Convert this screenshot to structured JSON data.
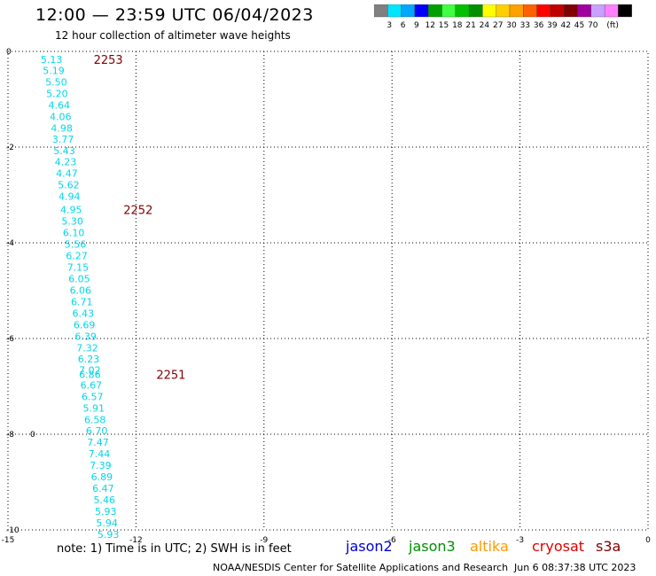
{
  "header": {
    "title": "12:00 — 23:59 UTC 06/04/2023",
    "subtitle": "12 hour collection of altimeter wave heights"
  },
  "legend": {
    "colors": [
      "#808080",
      "#00e5ff",
      "#00a6ff",
      "#0000ff",
      "#00a000",
      "#40ff40",
      "#00c000",
      "#009000",
      "#ffff00",
      "#ffd000",
      "#ffa000",
      "#ff6000",
      "#ff0000",
      "#c00000",
      "#800000",
      "#a000a0",
      "#c8a0ff",
      "#ff80ff",
      "#000000"
    ],
    "labels": [
      "3",
      "6",
      "9",
      "12",
      "15",
      "18",
      "21",
      "24",
      "27",
      "30",
      "33",
      "36",
      "39",
      "42",
      "45",
      "70",
      "(ft)"
    ]
  },
  "chart_data": {
    "type": "scatter",
    "xlim": [
      -15,
      0
    ],
    "ylim": [
      -10,
      0
    ],
    "x_ticks": [
      "-15",
      "-12",
      "-9",
      "-6",
      "-3",
      "0"
    ],
    "y_ticks": [
      "0",
      "-2",
      "-4",
      "-6",
      "-8",
      "-10"
    ],
    "grid": true,
    "value_color": "#00d8e8",
    "track_label_color": "#800000",
    "points": [
      {
        "x": -13.98,
        "y": -0.17,
        "v": "5.13"
      },
      {
        "x": -13.93,
        "y": -0.4,
        "v": "5.19"
      },
      {
        "x": -13.87,
        "y": -0.64,
        "v": "5.50"
      },
      {
        "x": -13.85,
        "y": -0.88,
        "v": "5.20"
      },
      {
        "x": -13.8,
        "y": -1.12,
        "v": "4.64"
      },
      {
        "x": -13.77,
        "y": -1.36,
        "v": "4.06"
      },
      {
        "x": -13.74,
        "y": -1.6,
        "v": "4.98"
      },
      {
        "x": -13.71,
        "y": -1.83,
        "v": "3.77"
      },
      {
        "x": -13.68,
        "y": -2.07,
        "v": "5.43"
      },
      {
        "x": -13.65,
        "y": -2.31,
        "v": "4.23"
      },
      {
        "x": -13.62,
        "y": -2.55,
        "v": "4.47"
      },
      {
        "x": -13.58,
        "y": -2.79,
        "v": "5.62"
      },
      {
        "x": -13.56,
        "y": -3.03,
        "v": "4.94"
      },
      {
        "x": -13.52,
        "y": -3.31,
        "v": "4.95"
      },
      {
        "x": -13.49,
        "y": -3.55,
        "v": "5.30"
      },
      {
        "x": -13.46,
        "y": -3.79,
        "v": "6.10"
      },
      {
        "x": -13.42,
        "y": -4.03,
        "v": "5.56"
      },
      {
        "x": -13.39,
        "y": -4.27,
        "v": "6.27"
      },
      {
        "x": -13.36,
        "y": -4.51,
        "v": "7.15"
      },
      {
        "x": -13.33,
        "y": -4.75,
        "v": "6.05"
      },
      {
        "x": -13.3,
        "y": -4.99,
        "v": "6.06"
      },
      {
        "x": -13.27,
        "y": -5.23,
        "v": "6.71"
      },
      {
        "x": -13.24,
        "y": -5.47,
        "v": "6.43"
      },
      {
        "x": -13.21,
        "y": -5.71,
        "v": "6.69"
      },
      {
        "x": -13.18,
        "y": -5.95,
        "v": "6.39"
      },
      {
        "x": -13.14,
        "y": -6.19,
        "v": "7.32"
      },
      {
        "x": -13.11,
        "y": -6.43,
        "v": "6.23"
      },
      {
        "x": -13.08,
        "y": -6.66,
        "v": "7.02"
      },
      {
        "x": -13.08,
        "y": -6.75,
        "v": "6.86"
      },
      {
        "x": -13.05,
        "y": -6.97,
        "v": "6.67"
      },
      {
        "x": -13.02,
        "y": -7.21,
        "v": "6.57"
      },
      {
        "x": -12.99,
        "y": -7.45,
        "v": "5.91"
      },
      {
        "x": -12.96,
        "y": -7.69,
        "v": "6.58"
      },
      {
        "x": -12.92,
        "y": -7.93,
        "v": "6.70"
      },
      {
        "x": -12.89,
        "y": -8.17,
        "v": "7.47"
      },
      {
        "x": -12.86,
        "y": -8.41,
        "v": "7.44"
      },
      {
        "x": -12.83,
        "y": -8.65,
        "v": "7.39"
      },
      {
        "x": -12.8,
        "y": -8.89,
        "v": "6.89"
      },
      {
        "x": -12.77,
        "y": -9.13,
        "v": "6.47"
      },
      {
        "x": -12.74,
        "y": -9.37,
        "v": "5.46"
      },
      {
        "x": -12.71,
        "y": -9.61,
        "v": "5.93"
      },
      {
        "x": -12.68,
        "y": -9.85,
        "v": "5.94"
      },
      {
        "x": -12.65,
        "y": -10.09,
        "v": "5.93"
      }
    ],
    "track_labels": [
      {
        "x": -12.65,
        "y": -0.17,
        "v": "2253"
      },
      {
        "x": -11.95,
        "y": -3.31,
        "v": "2252"
      },
      {
        "x": -11.18,
        "y": -6.75,
        "v": "2251"
      }
    ],
    "marks": [
      {
        "x": -14.42,
        "y": -8.0,
        "v": "0"
      }
    ]
  },
  "footer": {
    "note": "note: 1) Time is in UTC; 2) SWH is in feet",
    "satellites": [
      {
        "name": "jason2",
        "color": "#0000cc"
      },
      {
        "name": "jason3",
        "color": "#009000"
      },
      {
        "name": "altika",
        "color": "#ff9900"
      },
      {
        "name": "cryosat",
        "color": "#dd0000"
      },
      {
        "name": "s3a",
        "color": "#800000"
      }
    ],
    "credit": "NOAA/NESDIS Center for Satellite Applications and Research",
    "timestamp": "Jun  6 08:37:38 UTC 2023"
  }
}
